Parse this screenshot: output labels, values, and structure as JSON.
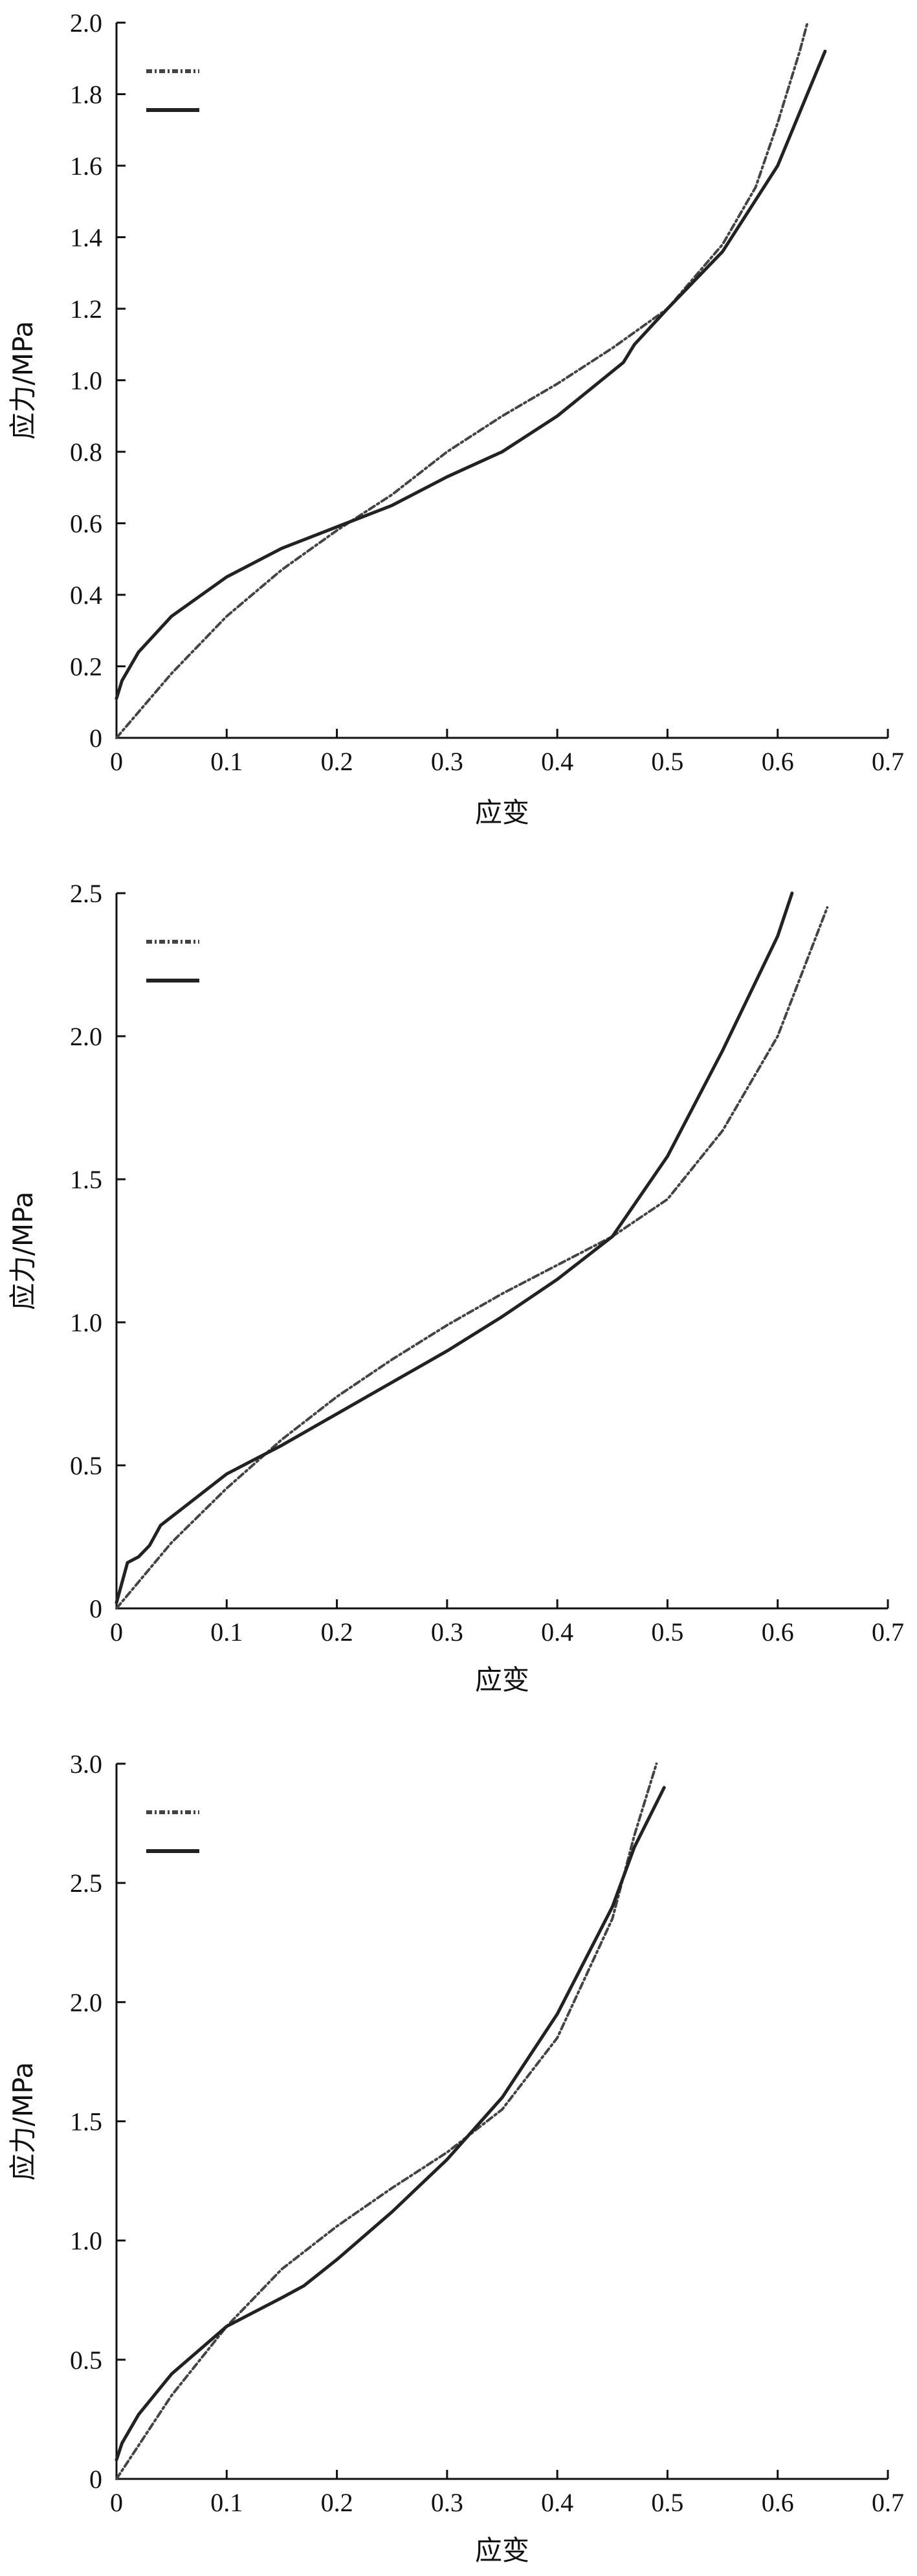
{
  "chart_data": [
    {
      "type": "line",
      "xlabel": "应变",
      "ylabel": "应力/MPa",
      "xlim": [
        0,
        0.7
      ],
      "ylim": [
        0,
        2.0
      ],
      "xticks": [
        "0",
        "0.1",
        "0.2",
        "0.3",
        "0.4",
        "0.5",
        "0.6",
        "0.7"
      ],
      "yticks": [
        "0",
        "0.2",
        "0.4",
        "0.6",
        "0.8",
        "1.0",
        "1.2",
        "1.4",
        "1.6",
        "1.8",
        "2.0"
      ],
      "grid": false,
      "legend": "top-left",
      "series": [
        {
          "style": "dashed",
          "color": "#444444",
          "x": [
            0,
            0.05,
            0.1,
            0.15,
            0.2,
            0.25,
            0.3,
            0.35,
            0.4,
            0.45,
            0.5,
            0.55,
            0.58,
            0.6,
            0.62,
            0.627
          ],
          "y": [
            0,
            0.18,
            0.34,
            0.47,
            0.58,
            0.68,
            0.8,
            0.9,
            0.99,
            1.09,
            1.2,
            1.38,
            1.54,
            1.72,
            1.92,
            2.0
          ]
        },
        {
          "style": "solid",
          "color": "#222222",
          "x": [
            0,
            0.005,
            0.02,
            0.05,
            0.1,
            0.15,
            0.2,
            0.25,
            0.3,
            0.35,
            0.4,
            0.46,
            0.47,
            0.5,
            0.55,
            0.6,
            0.643
          ],
          "y": [
            0.11,
            0.16,
            0.24,
            0.34,
            0.45,
            0.53,
            0.59,
            0.65,
            0.73,
            0.8,
            0.9,
            1.05,
            1.1,
            1.2,
            1.36,
            1.6,
            1.92
          ]
        }
      ]
    },
    {
      "type": "line",
      "xlabel": "应变",
      "ylabel": "应力/MPa",
      "xlim": [
        0,
        0.7
      ],
      "ylim": [
        0,
        2.5
      ],
      "xticks": [
        "0",
        "0.1",
        "0.2",
        "0.3",
        "0.4",
        "0.5",
        "0.6",
        "0.7"
      ],
      "yticks": [
        "0",
        "0.5",
        "1.0",
        "1.5",
        "2.0",
        "2.5"
      ],
      "grid": false,
      "legend": "top-left",
      "series": [
        {
          "style": "dashed",
          "color": "#444444",
          "x": [
            0,
            0.05,
            0.1,
            0.15,
            0.2,
            0.25,
            0.3,
            0.35,
            0.4,
            0.45,
            0.5,
            0.55,
            0.6,
            0.62,
            0.645
          ],
          "y": [
            0,
            0.23,
            0.42,
            0.59,
            0.74,
            0.87,
            0.99,
            1.1,
            1.2,
            1.3,
            1.43,
            1.67,
            2.0,
            2.2,
            2.45
          ]
        },
        {
          "style": "solid",
          "color": "#222222",
          "x": [
            0,
            0.01,
            0.02,
            0.03,
            0.04,
            0.06,
            0.1,
            0.15,
            0.2,
            0.25,
            0.3,
            0.35,
            0.4,
            0.45,
            0.5,
            0.55,
            0.6,
            0.613
          ],
          "y": [
            0.02,
            0.16,
            0.18,
            0.22,
            0.29,
            0.35,
            0.47,
            0.57,
            0.68,
            0.79,
            0.9,
            1.02,
            1.15,
            1.3,
            1.58,
            1.95,
            2.35,
            2.5
          ]
        }
      ]
    },
    {
      "type": "line",
      "xlabel": "应变",
      "ylabel": "应力/MPa",
      "xlim": [
        0,
        0.7
      ],
      "ylim": [
        0,
        3.0
      ],
      "xticks": [
        "0",
        "0.1",
        "0.2",
        "0.3",
        "0.4",
        "0.5",
        "0.6",
        "0.7"
      ],
      "yticks": [
        "0",
        "0.5",
        "1.0",
        "1.5",
        "2.0",
        "2.5",
        "3.0"
      ],
      "grid": false,
      "legend": "top-left",
      "series": [
        {
          "style": "dashed",
          "color": "#444444",
          "x": [
            0,
            0.05,
            0.1,
            0.15,
            0.2,
            0.25,
            0.3,
            0.35,
            0.4,
            0.45,
            0.47,
            0.49
          ],
          "y": [
            0,
            0.35,
            0.64,
            0.88,
            1.06,
            1.22,
            1.37,
            1.55,
            1.85,
            2.35,
            2.7,
            3.0
          ]
        },
        {
          "style": "solid",
          "color": "#222222",
          "x": [
            0,
            0.005,
            0.02,
            0.05,
            0.1,
            0.15,
            0.17,
            0.2,
            0.25,
            0.3,
            0.35,
            0.4,
            0.45,
            0.47,
            0.497
          ],
          "y": [
            0.08,
            0.15,
            0.27,
            0.44,
            0.64,
            0.76,
            0.81,
            0.92,
            1.12,
            1.34,
            1.6,
            1.95,
            2.4,
            2.65,
            2.9
          ]
        }
      ]
    }
  ]
}
